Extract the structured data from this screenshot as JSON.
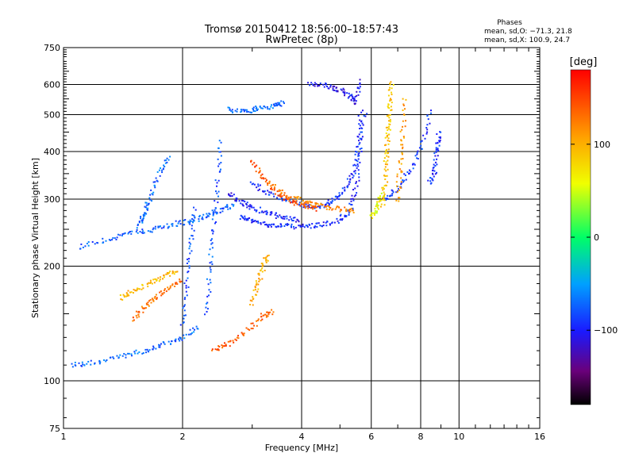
{
  "chart_data": {
    "type": "scatter",
    "title": "Tromsø 20150412 18:56:00–18:57:43",
    "subtitle": "RwPretec (8p)",
    "xlabel": "Frequency [MHz]",
    "ylabel": "Stationary phase Virtual Height [km]",
    "xscale": "log",
    "yscale": "log",
    "xlim": [
      1,
      16
    ],
    "ylim": [
      75,
      750
    ],
    "xticks": [
      "1",
      "2",
      "4",
      "6",
      "8",
      "10",
      "16"
    ],
    "xtick_values": [
      1,
      2,
      4,
      6,
      8,
      10,
      16
    ],
    "yticks": [
      "75",
      "100",
      "200",
      "300",
      "400",
      "500",
      "600",
      "750"
    ],
    "ytick_values": [
      75,
      100,
      200,
      300,
      400,
      500,
      600,
      750
    ],
    "grid": true,
    "stats": {
      "heading": "Phases",
      "line_o": "mean, sd,O: −71.3, 21.8",
      "line_x": "mean, sd,X: 100.9, 24.7"
    },
    "colorbar": {
      "label": "[deg]",
      "ticks": [
        "100",
        "0",
        "−100"
      ],
      "tick_values": [
        100,
        0,
        -100
      ],
      "range": [
        -180,
        180
      ]
    },
    "traces": [
      {
        "phase": -95,
        "x": [
          2.8,
          3.0,
          3.3,
          3.6,
          4.0,
          4.4,
          4.9,
          5.3,
          5.5,
          5.6,
          5.65
        ],
        "y": [
          270,
          262,
          257,
          255,
          254,
          256,
          262,
          278,
          320,
          400,
          520
        ]
      },
      {
        "phase": -100,
        "x": [
          2.6,
          2.8,
          3.0,
          3.3,
          3.6,
          4.0
        ],
        "y": [
          310,
          295,
          285,
          275,
          268,
          263
        ]
      },
      {
        "phase": -90,
        "x": [
          3.0,
          3.3,
          3.7,
          4.1,
          4.5,
          4.8,
          5.1,
          5.4,
          5.6,
          5.8
        ],
        "y": [
          330,
          310,
          298,
          288,
          288,
          296,
          315,
          350,
          420,
          520
        ]
      },
      {
        "phase": -105,
        "x": [
          4.2,
          4.6,
          5.0,
          5.3,
          5.5,
          5.6
        ],
        "y": [
          600,
          595,
          580,
          560,
          540,
          620
        ]
      },
      {
        "phase": -88,
        "x": [
          6.5,
          7.0,
          7.6,
          8.1,
          8.5
        ],
        "y": [
          300,
          320,
          360,
          420,
          520
        ]
      },
      {
        "phase": -92,
        "x": [
          8.4,
          8.7,
          8.8,
          8.9
        ],
        "y": [
          330,
          360,
          410,
          450
        ]
      },
      {
        "phase": -70,
        "x": [
          2.6,
          2.9,
          3.1,
          3.4,
          3.6
        ],
        "y": [
          515,
          510,
          520,
          525,
          540
        ]
      },
      {
        "phase": -75,
        "x": [
          1.1,
          1.3,
          1.5,
          1.7,
          1.9,
          2.1,
          2.3,
          2.5,
          2.7
        ],
        "y": [
          225,
          235,
          245,
          250,
          258,
          262,
          272,
          280,
          290
        ]
      },
      {
        "phase": -72,
        "x": [
          1.05,
          1.2,
          1.4,
          1.6,
          1.8,
          2.0,
          2.2
        ],
        "y": [
          110,
          112,
          116,
          120,
          125,
          130,
          140
        ]
      },
      {
        "phase": -78,
        "x": [
          2.3,
          2.35,
          2.4,
          2.45,
          2.5
        ],
        "y": [
          150,
          200,
          260,
          340,
          440
        ]
      },
      {
        "phase": -80,
        "x": [
          2.0,
          2.05,
          2.1,
          2.15
        ],
        "y": [
          140,
          180,
          230,
          290
        ]
      },
      {
        "phase": -70,
        "x": [
          1.55,
          1.6,
          1.65,
          1.75,
          1.85
        ],
        "y": [
          255,
          275,
          300,
          350,
          390
        ]
      },
      {
        "phase": 140,
        "x": [
          3.0,
          3.2,
          3.5,
          3.8,
          4.1,
          4.4
        ],
        "y": [
          380,
          340,
          310,
          295,
          288,
          282
        ]
      },
      {
        "phase": 120,
        "x": [
          3.3,
          3.7,
          4.1,
          4.5,
          5.0,
          5.5
        ],
        "y": [
          330,
          305,
          295,
          288,
          282,
          280
        ]
      },
      {
        "phase": 90,
        "x": [
          6.4,
          6.5,
          6.55,
          6.6,
          6.65,
          6.7,
          6.75
        ],
        "y": [
          290,
          330,
          380,
          430,
          480,
          540,
          610
        ]
      },
      {
        "phase": 110,
        "x": [
          7.0,
          7.1,
          7.2,
          7.3
        ],
        "y": [
          300,
          360,
          440,
          560
        ]
      },
      {
        "phase": 60,
        "x": [
          6.0,
          6.2,
          6.4
        ],
        "y": [
          270,
          285,
          310
        ]
      },
      {
        "phase": 140,
        "x": [
          2.4,
          2.6,
          2.9,
          3.2,
          3.4
        ],
        "y": [
          120,
          125,
          135,
          148,
          152
        ]
      },
      {
        "phase": 130,
        "x": [
          1.5,
          1.6,
          1.7,
          1.85,
          2.0
        ],
        "y": [
          145,
          155,
          165,
          175,
          185
        ]
      },
      {
        "phase": 95,
        "x": [
          1.4,
          1.5,
          1.65,
          1.8,
          1.95
        ],
        "y": [
          165,
          172,
          180,
          188,
          195
        ]
      },
      {
        "phase": 100,
        "x": [
          3.0,
          3.1,
          3.2,
          3.3
        ],
        "y": [
          160,
          180,
          200,
          215
        ]
      }
    ]
  }
}
